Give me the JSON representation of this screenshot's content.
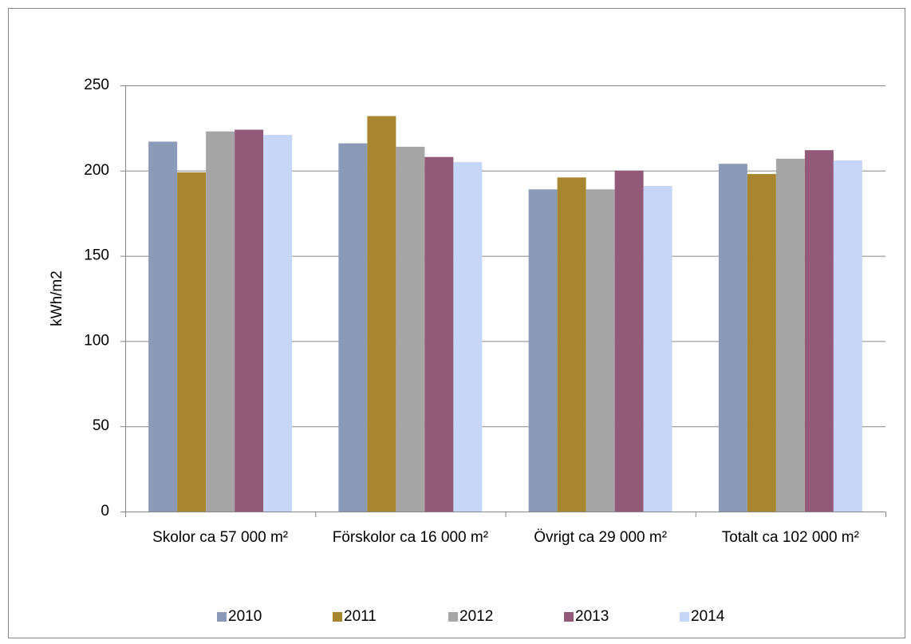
{
  "chart_data": {
    "type": "bar",
    "y_label": "kWh/m2",
    "categories": [
      "Skolor ca 57 000 m²",
      "Förskolor ca 16 000 m²",
      "Övrigt ca 29 000 m²",
      "Totalt ca 102 000 m²"
    ],
    "series": [
      {
        "name": "2010",
        "color": "#8a9ab7",
        "values": [
          217,
          216,
          189,
          204
        ]
      },
      {
        "name": "2011",
        "color": "#a8862f",
        "values": [
          199,
          232,
          196,
          198
        ]
      },
      {
        "name": "2012",
        "color": "#a6a6a6",
        "values": [
          223,
          214,
          189,
          207
        ]
      },
      {
        "name": "2013",
        "color": "#935979",
        "values": [
          224,
          208,
          200,
          212
        ]
      },
      {
        "name": "2014",
        "color": "#c6d6f8",
        "values": [
          221,
          205,
          191,
          206
        ]
      }
    ],
    "ylim": [
      0,
      250
    ],
    "yticks": [
      0,
      50,
      100,
      150,
      200,
      250
    ],
    "grid": true,
    "legend": "bottom"
  }
}
